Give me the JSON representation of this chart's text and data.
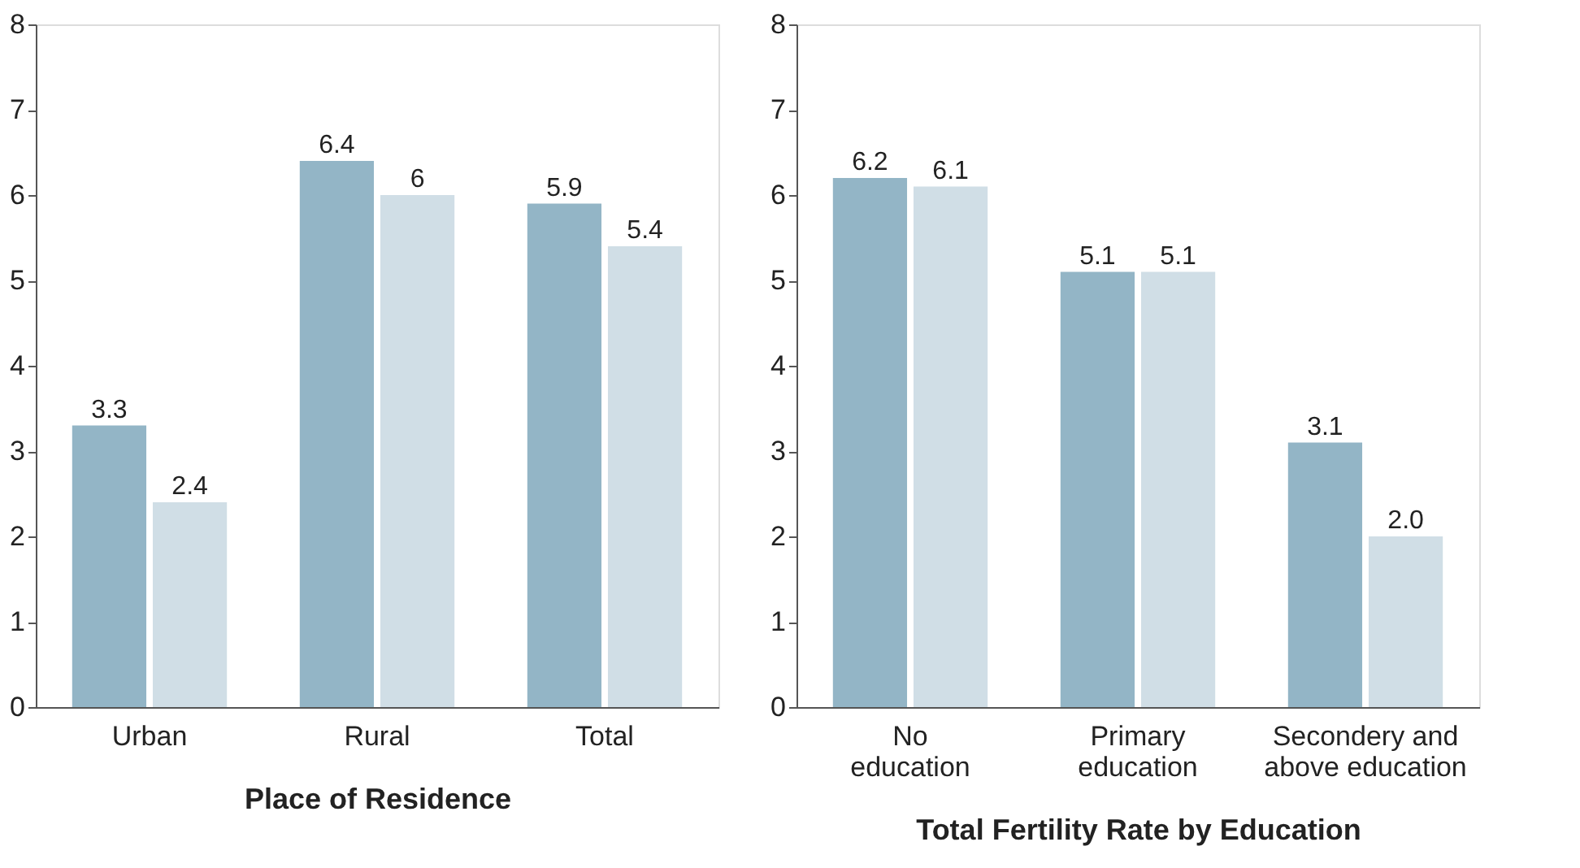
{
  "chart_data": [
    {
      "type": "bar",
      "xlabel": "Place of Residence",
      "categories": [
        "Urban",
        "Rural",
        "Total"
      ],
      "series": [
        {
          "color": "#93b5c6",
          "values": [
            3.3,
            6.4,
            5.9
          ],
          "value_labels": [
            "3.3",
            "6.4",
            "5.9"
          ]
        },
        {
          "color": "#d0dee6",
          "values": [
            2.4,
            6,
            5.4
          ],
          "value_labels": [
            "2.4",
            "6",
            "5.4"
          ]
        }
      ],
      "ylim": [
        0,
        8
      ],
      "yticks": [
        0,
        1,
        2,
        3,
        4,
        5,
        6,
        7,
        8
      ],
      "grid": false,
      "legend": false
    },
    {
      "type": "bar",
      "xlabel": "Total Fertility Rate by Education",
      "categories": [
        "No education",
        "Primary education",
        "Secondery and above education"
      ],
      "series": [
        {
          "color": "#93b5c6",
          "values": [
            6.2,
            5.1,
            3.1
          ],
          "value_labels": [
            "6.2",
            "5.1",
            "3.1"
          ]
        },
        {
          "color": "#d0dee6",
          "values": [
            6.1,
            5.1,
            2.0
          ],
          "value_labels": [
            "6.1",
            "5.1",
            "2.0"
          ]
        }
      ],
      "ylim": [
        0,
        8
      ],
      "yticks": [
        0,
        1,
        2,
        3,
        4,
        5,
        6,
        7,
        8
      ],
      "grid": false,
      "legend": false
    }
  ]
}
